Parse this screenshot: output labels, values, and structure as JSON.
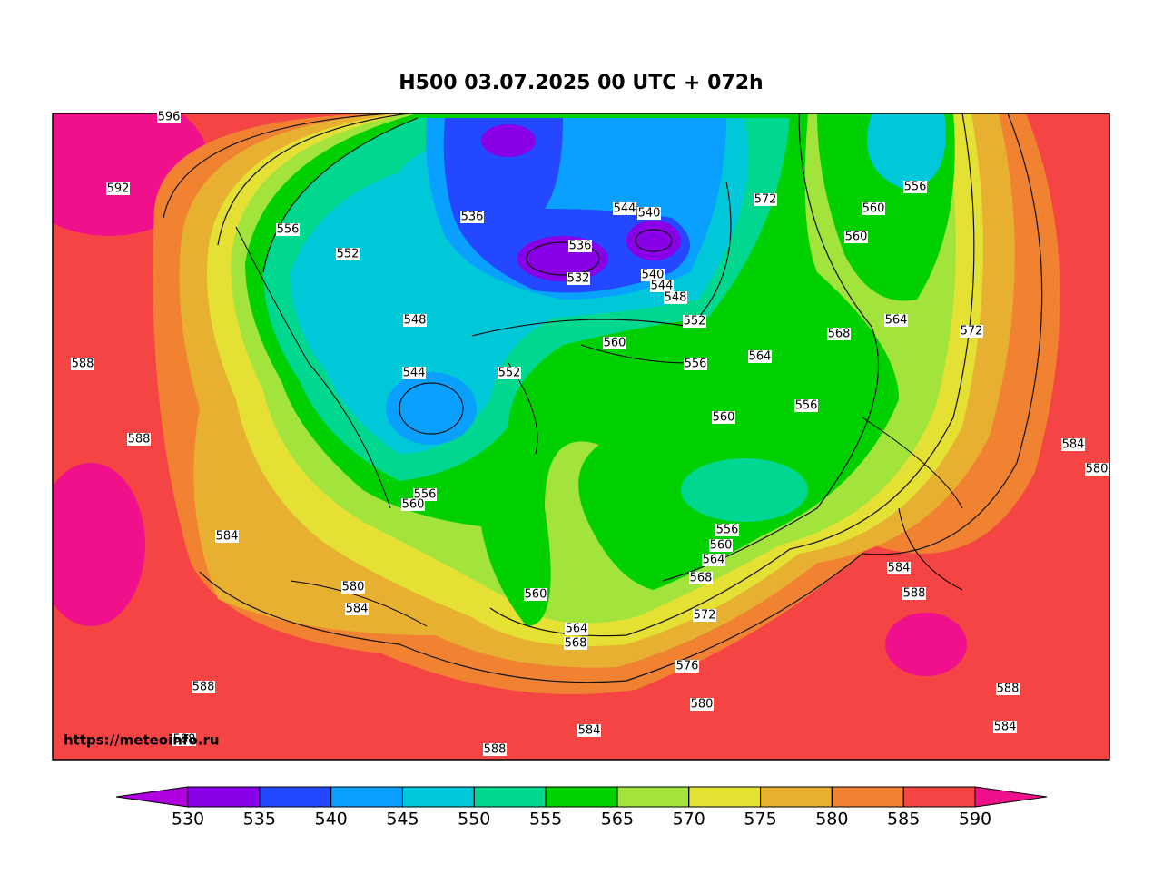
{
  "title": "H500  03.07.2025 00 UTC + 072h",
  "watermark": "https://meteoinfo.ru",
  "contour_labels": [
    596,
    592,
    556,
    552,
    548,
    544,
    552,
    536,
    544,
    540,
    536,
    532,
    540,
    544,
    548,
    552,
    560,
    556,
    564,
    560,
    556,
    572,
    560,
    556,
    560,
    564,
    568,
    572,
    584,
    580,
    588,
    588,
    584,
    556,
    560,
    556,
    560,
    564,
    568,
    580,
    584,
    560,
    564,
    568,
    572,
    576,
    580,
    584,
    588,
    588,
    584,
    588,
    588,
    584,
    588
  ],
  "colorbar": {
    "ticks": [
      530,
      535,
      540,
      545,
      550,
      555,
      565,
      570,
      575,
      580,
      585,
      590
    ],
    "colors": [
      "#b000e0",
      "#8a00e6",
      "#2448ff",
      "#0aa0ff",
      "#00c8d8",
      "#00d890",
      "#00d000",
      "#a2e43c",
      "#e4e034",
      "#e8b030",
      "#f08232",
      "#f44444",
      "#f0108c"
    ]
  }
}
